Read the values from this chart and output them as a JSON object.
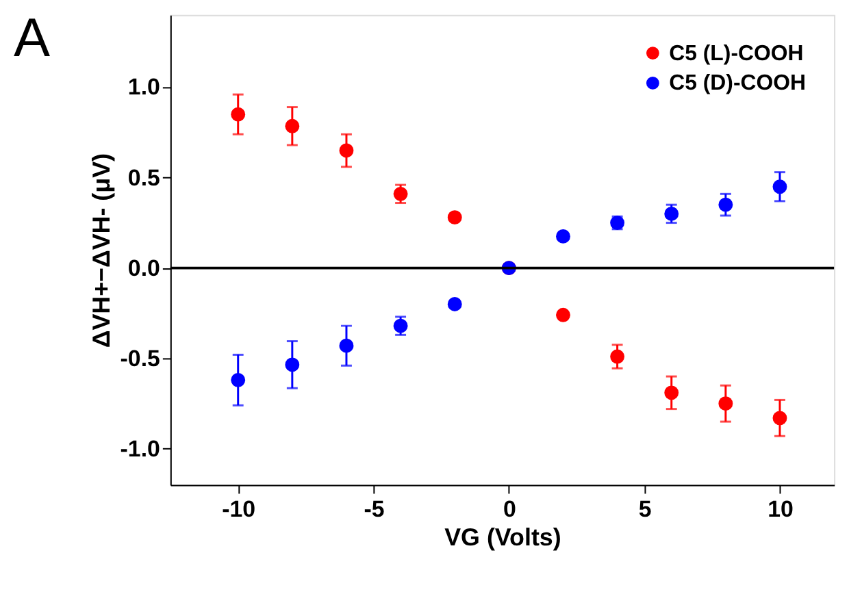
{
  "chart_data": {
    "type": "scatter",
    "xlabel": "VG (Volts)",
    "ylabel": "ΔVH+−ΔVH- (μV)",
    "annotations": [
      "A"
    ],
    "x": [
      -10,
      -8,
      -6,
      -4,
      -2,
      0,
      2,
      4,
      6,
      8,
      10
    ],
    "series": [
      {
        "name": "C5 (L)-COOH",
        "color": "#ff0000",
        "values": [
          0.85,
          0.785,
          0.65,
          0.41,
          0.28,
          0.0,
          -0.26,
          -0.49,
          -0.69,
          -0.75,
          -0.83
        ],
        "errors": [
          0.11,
          0.105,
          0.09,
          0.05,
          null,
          null,
          null,
          0.065,
          0.09,
          0.1,
          0.1
        ]
      },
      {
        "name": "C5 (D)-COOH",
        "color": "#0000ff",
        "values": [
          -0.62,
          -0.535,
          -0.43,
          -0.32,
          -0.2,
          0.0,
          0.175,
          0.25,
          0.3,
          0.35,
          0.45
        ],
        "errors": [
          0.14,
          0.13,
          0.11,
          0.05,
          null,
          null,
          null,
          0.035,
          0.05,
          0.06,
          0.08
        ]
      }
    ],
    "xlim": [
      -12.5,
      12
    ],
    "xticks": [
      {
        "value": -10,
        "label": "-10"
      },
      {
        "value": -5,
        "label": "-5"
      },
      0,
      5,
      10
    ],
    "ylim": [
      -1.2,
      1.4
    ],
    "yticks": [
      {
        "value": -1.0,
        "label": "-1.0"
      },
      {
        "value": -0.5,
        "label": "-0.5"
      },
      {
        "value": 0.0,
        "label": "0.0"
      },
      0.5,
      {
        "value": 1.0,
        "label": "1.0"
      }
    ],
    "ref_lines": [
      {
        "axis": "y",
        "value": 0,
        "color": "#000000"
      }
    ],
    "legend": "top right",
    "grid": false,
    "marker": "circle"
  }
}
